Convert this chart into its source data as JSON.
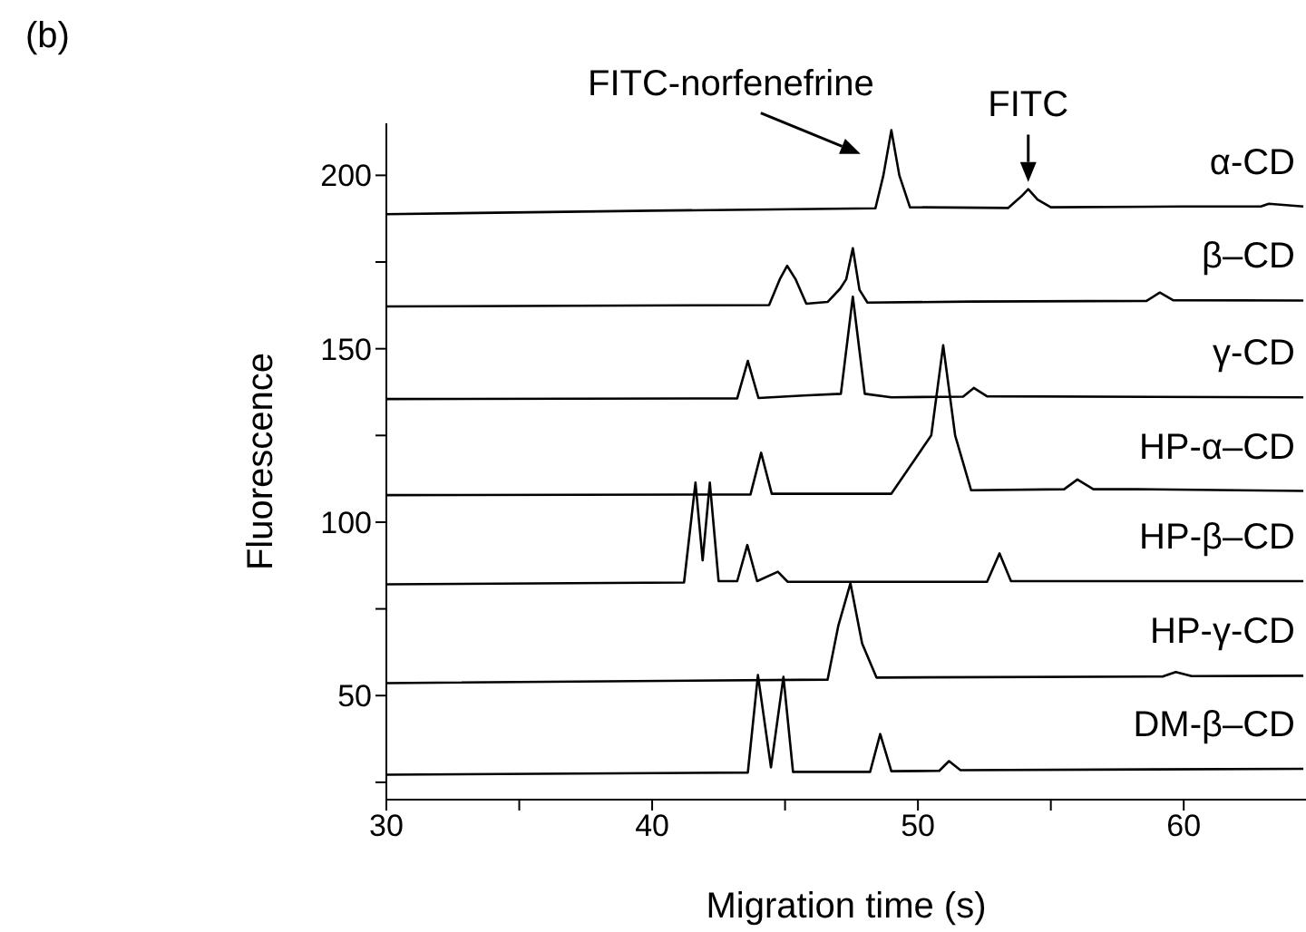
{
  "chart_data": {
    "type": "line",
    "xlabel": "Migration time (s)",
    "ylabel": "Fluorescence",
    "xlim": [
      30,
      64.6
    ],
    "ylim": [
      20,
      215
    ],
    "xticks": [
      30,
      {
        "value": 35,
        "label": null
      },
      40,
      {
        "value": 45,
        "label": null
      },
      50,
      {
        "value": 55,
        "label": null
      },
      60
    ],
    "yticks": [
      {
        "value": 25,
        "label": null
      },
      50,
      {
        "value": 75,
        "label": null
      },
      100,
      {
        "value": 125,
        "label": null
      },
      150,
      {
        "value": 175,
        "label": null
      },
      200
    ],
    "marker": "none",
    "annotations": [
      "(b)",
      {
        "text": "FITC-norfenefrine",
        "x": 49.0,
        "y": 213
      },
      {
        "text": "FITC",
        "x": 54.15,
        "y": 196
      }
    ],
    "series": [
      {
        "name": "α-CD",
        "color": "#000000",
        "x": [
          30,
          40,
          48.4,
          48.7,
          49.0,
          49.3,
          49.7,
          53.4,
          53.9,
          54.15,
          54.5,
          55,
          60,
          62.9,
          63.2,
          64.5
        ],
        "values": [
          188.8,
          189.8,
          190.5,
          200,
          213,
          200,
          190.8,
          190.6,
          194,
          196,
          193,
          190.8,
          191,
          191,
          191.8,
          191
        ]
      },
      {
        "name": "β–CD",
        "color": "#000000",
        "x": [
          30,
          44.4,
          44.8,
          45.08,
          45.4,
          45.8,
          46.6,
          47.07,
          47.3,
          47.55,
          47.8,
          48.1,
          52,
          58.6,
          59.1,
          59.6,
          64.5
        ],
        "values": [
          162.2,
          162.6,
          170,
          173.9,
          170,
          163,
          163.5,
          167.3,
          170,
          179,
          167,
          163.3,
          163.6,
          163.8,
          166.2,
          164,
          163.9
        ]
      },
      {
        "name": "γ-CD",
        "color": "#000000",
        "x": [
          30,
          43.2,
          43.6,
          44,
          45.7,
          47.1,
          47.55,
          48,
          49,
          51.7,
          52.1,
          52.6,
          64.5
        ],
        "values": [
          135.5,
          135.7,
          146.5,
          135.8,
          136.5,
          137,
          165,
          137,
          136,
          136.2,
          138.7,
          136.3,
          136
        ]
      },
      {
        "name": "HP-α–CD",
        "color": "#000000",
        "x": [
          30,
          43.7,
          44.1,
          44.5,
          49,
          50.5,
          50.95,
          51.4,
          52,
          55.5,
          56,
          56.6,
          58.2,
          64.5
        ],
        "values": [
          107.8,
          108,
          120,
          108.2,
          108.2,
          125,
          151,
          125,
          109.2,
          109.5,
          112.3,
          109.5,
          109.5,
          109
        ]
      },
      {
        "name": "HP-β–CD",
        "color": "#000000",
        "x": [
          30,
          41.2,
          41.63,
          41.9,
          42.17,
          42.5,
          43.2,
          43.58,
          43.95,
          44.73,
          45.1,
          52.6,
          53.07,
          53.5,
          64.5
        ],
        "values": [
          82.1,
          82.6,
          111.4,
          89,
          111.4,
          83,
          83,
          93.4,
          83,
          85.7,
          82.8,
          82.8,
          91,
          83,
          83
        ]
      },
      {
        "name": "HP-γ-CD",
        "color": "#000000",
        "x": [
          30,
          46.6,
          47.0,
          47.46,
          47.9,
          48.44,
          59.2,
          59.7,
          60.3,
          64.5
        ],
        "values": [
          53.6,
          54.6,
          70,
          82.4,
          65,
          55.2,
          55.5,
          56.8,
          55.6,
          55.7
        ]
      },
      {
        "name": "DM-β–CD",
        "color": "#000000",
        "x": [
          30,
          43.6,
          43.98,
          44.47,
          44.94,
          45.3,
          48.2,
          48.58,
          49,
          50.8,
          51.17,
          51.6,
          64.5
        ],
        "values": [
          27.2,
          27.8,
          55.9,
          29.3,
          55.4,
          28,
          28,
          38.9,
          28.2,
          28.3,
          31.1,
          28.5,
          28.9
        ]
      }
    ]
  }
}
